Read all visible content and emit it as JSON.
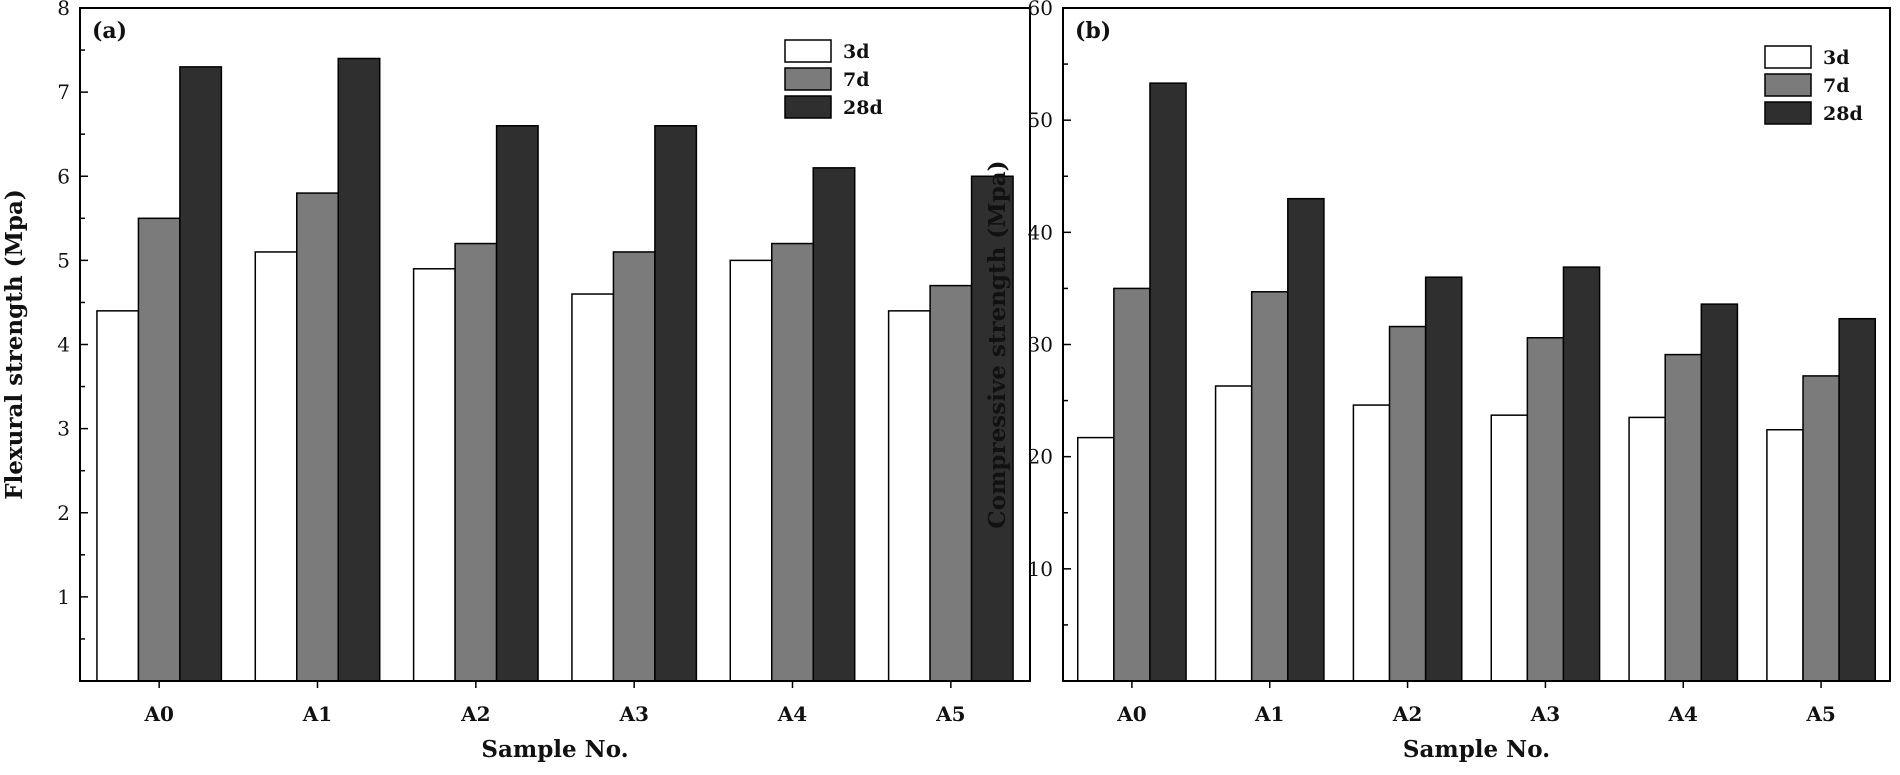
{
  "colors": {
    "3d": "#ffffff",
    "7d": "#7b7b7b",
    "28d": "#2f2f2f",
    "axis": "#000000"
  },
  "chart_data": [
    {
      "type": "bar",
      "panel_label": "(a)",
      "title": "",
      "xlabel": "Sample No.",
      "ylabel": "Flexural strength (Mpa)",
      "ylim": [
        0,
        8
      ],
      "yticks": [
        1,
        2,
        3,
        4,
        5,
        6,
        7,
        8
      ],
      "grid": false,
      "legend_position": "top-right",
      "categories": [
        "A0",
        "A1",
        "A2",
        "A3",
        "A4",
        "A5"
      ],
      "series": [
        {
          "name": "3d",
          "values": [
            4.4,
            5.1,
            4.9,
            4.6,
            5.0,
            4.4
          ]
        },
        {
          "name": "7d",
          "values": [
            5.5,
            5.8,
            5.2,
            5.1,
            5.2,
            4.7
          ]
        },
        {
          "name": "28d",
          "values": [
            7.3,
            7.4,
            6.6,
            6.6,
            6.1,
            6.0
          ]
        }
      ]
    },
    {
      "type": "bar",
      "panel_label": "(b)",
      "title": "",
      "xlabel": "Sample No.",
      "ylabel": "Compressive strength (Mpa)",
      "ylim": [
        0,
        60
      ],
      "yticks": [
        10,
        20,
        30,
        40,
        50,
        60
      ],
      "grid": false,
      "legend_position": "top-right",
      "categories": [
        "A0",
        "A1",
        "A2",
        "A3",
        "A4",
        "A5"
      ],
      "series": [
        {
          "name": "3d",
          "values": [
            21.7,
            26.3,
            24.6,
            23.7,
            23.5,
            22.4
          ]
        },
        {
          "name": "7d",
          "values": [
            35.0,
            34.7,
            31.6,
            30.6,
            29.1,
            27.2
          ]
        },
        {
          "name": "28d",
          "values": [
            53.3,
            43.0,
            36.0,
            36.9,
            33.6,
            32.3
          ]
        }
      ]
    }
  ]
}
